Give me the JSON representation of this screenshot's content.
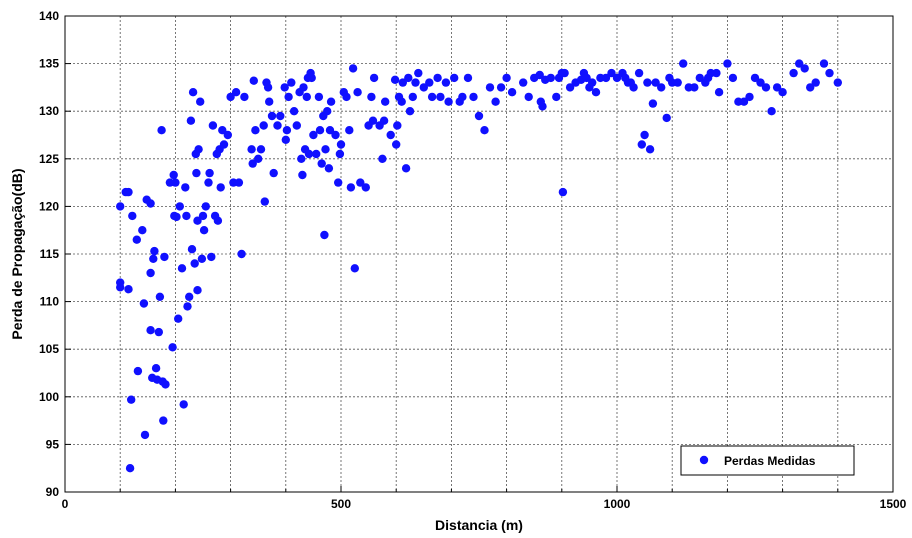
{
  "chart_data": {
    "type": "scatter",
    "title": "",
    "xlabel": "Distancia (m)",
    "ylabel": "Perda de Propagação(dB)",
    "xlim": [
      0,
      1500
    ],
    "ylim": [
      90,
      140
    ],
    "xticks": [
      0,
      500,
      1000,
      1500
    ],
    "yticks": [
      90,
      95,
      100,
      105,
      110,
      115,
      120,
      125,
      130,
      135,
      140
    ],
    "grid": true,
    "legend_position": "bottom-right",
    "marker_color": "#1010ff",
    "series": [
      {
        "name": "Perdas Medidas",
        "points": [
          [
            100,
            112.0
          ],
          [
            100,
            111.5
          ],
          [
            100,
            120.0
          ],
          [
            110,
            121.5
          ],
          [
            115,
            121.5
          ],
          [
            115,
            111.3
          ],
          [
            118,
            92.5
          ],
          [
            120,
            99.7
          ],
          [
            122,
            119.0
          ],
          [
            130,
            116.5
          ],
          [
            132,
            102.7
          ],
          [
            140,
            117.5
          ],
          [
            143,
            109.8
          ],
          [
            145,
            96.0
          ],
          [
            148,
            120.7
          ],
          [
            155,
            120.3
          ],
          [
            155,
            113.0
          ],
          [
            155,
            107.0
          ],
          [
            158,
            102.0
          ],
          [
            160,
            114.5
          ],
          [
            162,
            115.3
          ],
          [
            165,
            103.0
          ],
          [
            167,
            101.8
          ],
          [
            170,
            106.8
          ],
          [
            172,
            110.5
          ],
          [
            175,
            128.0
          ],
          [
            177,
            101.6
          ],
          [
            178,
            97.5
          ],
          [
            180,
            114.7
          ],
          [
            182,
            101.3
          ],
          [
            190,
            122.5
          ],
          [
            195,
            105.2
          ],
          [
            197,
            123.3
          ],
          [
            198,
            119.0
          ],
          [
            200,
            122.5
          ],
          [
            202,
            118.9
          ],
          [
            205,
            108.2
          ],
          [
            208,
            120.0
          ],
          [
            212,
            113.5
          ],
          [
            215,
            99.2
          ],
          [
            218,
            122.0
          ],
          [
            220,
            119.0
          ],
          [
            222,
            109.5
          ],
          [
            225,
            110.5
          ],
          [
            228,
            129.0
          ],
          [
            230,
            115.5
          ],
          [
            232,
            132.0
          ],
          [
            235,
            114.0
          ],
          [
            237,
            125.5
          ],
          [
            238,
            123.5
          ],
          [
            240,
            111.2
          ],
          [
            240,
            118.5
          ],
          [
            242,
            126.0
          ],
          [
            245,
            131.0
          ],
          [
            248,
            114.5
          ],
          [
            250,
            119.0
          ],
          [
            252,
            117.5
          ],
          [
            255,
            120.0
          ],
          [
            260,
            122.5
          ],
          [
            262,
            123.5
          ],
          [
            265,
            114.7
          ],
          [
            268,
            128.5
          ],
          [
            272,
            119.0
          ],
          [
            275,
            125.5
          ],
          [
            277,
            118.5
          ],
          [
            280,
            126.0
          ],
          [
            282,
            122.0
          ],
          [
            285,
            128.0
          ],
          [
            288,
            126.5
          ],
          [
            295,
            127.5
          ],
          [
            300,
            131.5
          ],
          [
            305,
            122.5
          ],
          [
            310,
            132.0
          ],
          [
            315,
            122.5
          ],
          [
            320,
            115.0
          ],
          [
            325,
            131.5
          ],
          [
            338,
            126.0
          ],
          [
            340,
            124.5
          ],
          [
            342,
            133.2
          ],
          [
            345,
            128.0
          ],
          [
            350,
            125.0
          ],
          [
            355,
            126.0
          ],
          [
            360,
            128.5
          ],
          [
            362,
            120.5
          ],
          [
            365,
            133.0
          ],
          [
            368,
            132.5
          ],
          [
            370,
            131.0
          ],
          [
            375,
            129.5
          ],
          [
            378,
            123.5
          ],
          [
            385,
            128.5
          ],
          [
            390,
            129.5
          ],
          [
            398,
            132.5
          ],
          [
            400,
            127.0
          ],
          [
            402,
            128.0
          ],
          [
            405,
            131.5
          ],
          [
            410,
            133.0
          ],
          [
            415,
            130.0
          ],
          [
            420,
            128.5
          ],
          [
            425,
            132.0
          ],
          [
            428,
            125.0
          ],
          [
            430,
            123.3
          ],
          [
            432,
            132.5
          ],
          [
            435,
            126.0
          ],
          [
            438,
            131.5
          ],
          [
            440,
            133.5
          ],
          [
            442,
            125.5
          ],
          [
            445,
            134.0
          ],
          [
            447,
            133.5
          ],
          [
            450,
            127.5
          ],
          [
            455,
            125.5
          ],
          [
            460,
            131.5
          ],
          [
            462,
            128.0
          ],
          [
            465,
            124.5
          ],
          [
            468,
            129.5
          ],
          [
            470,
            117.0
          ],
          [
            472,
            126.0
          ],
          [
            475,
            130.0
          ],
          [
            478,
            124.0
          ],
          [
            480,
            128.0
          ],
          [
            482,
            131.0
          ],
          [
            490,
            127.5
          ],
          [
            495,
            122.5
          ],
          [
            498,
            125.5
          ],
          [
            500,
            126.5
          ],
          [
            505,
            132.0
          ],
          [
            510,
            131.5
          ],
          [
            515,
            128.0
          ],
          [
            518,
            122.0
          ],
          [
            522,
            134.5
          ],
          [
            525,
            113.5
          ],
          [
            530,
            132.0
          ],
          [
            535,
            122.5
          ],
          [
            545,
            122.0
          ],
          [
            550,
            128.5
          ],
          [
            555,
            131.5
          ],
          [
            558,
            129.0
          ],
          [
            560,
            133.5
          ],
          [
            570,
            128.5
          ],
          [
            575,
            125.0
          ],
          [
            578,
            129.0
          ],
          [
            580,
            131.0
          ],
          [
            590,
            127.5
          ],
          [
            598,
            133.3
          ],
          [
            600,
            126.5
          ],
          [
            602,
            128.5
          ],
          [
            605,
            131.5
          ],
          [
            610,
            131.0
          ],
          [
            612,
            133.0
          ],
          [
            618,
            124.0
          ],
          [
            622,
            133.5
          ],
          [
            625,
            130.0
          ],
          [
            630,
            131.5
          ],
          [
            635,
            133.0
          ],
          [
            640,
            134.0
          ],
          [
            650,
            132.5
          ],
          [
            660,
            133.0
          ],
          [
            665,
            131.5
          ],
          [
            675,
            133.5
          ],
          [
            680,
            131.5
          ],
          [
            690,
            133.0
          ],
          [
            695,
            131.0
          ],
          [
            705,
            133.5
          ],
          [
            715,
            131.0
          ],
          [
            720,
            131.5
          ],
          [
            730,
            133.5
          ],
          [
            740,
            131.5
          ],
          [
            750,
            129.5
          ],
          [
            760,
            128.0
          ],
          [
            770,
            132.5
          ],
          [
            780,
            131.0
          ],
          [
            790,
            132.5
          ],
          [
            800,
            133.5
          ],
          [
            810,
            132.0
          ],
          [
            830,
            133.0
          ],
          [
            840,
            131.5
          ],
          [
            850,
            133.5
          ],
          [
            860,
            133.8
          ],
          [
            862,
            131.0
          ],
          [
            865,
            130.5
          ],
          [
            870,
            133.3
          ],
          [
            880,
            133.5
          ],
          [
            890,
            131.5
          ],
          [
            895,
            133.5
          ],
          [
            900,
            134.0
          ],
          [
            902,
            121.5
          ],
          [
            905,
            134.0
          ],
          [
            915,
            132.5
          ],
          [
            925,
            133.0
          ],
          [
            935,
            133.3
          ],
          [
            940,
            134.0
          ],
          [
            945,
            133.5
          ],
          [
            950,
            132.5
          ],
          [
            955,
            133.0
          ],
          [
            962,
            132.0
          ],
          [
            970,
            133.5
          ],
          [
            980,
            133.5
          ],
          [
            990,
            134.0
          ],
          [
            1000,
            133.5
          ],
          [
            1010,
            134.0
          ],
          [
            1015,
            133.5
          ],
          [
            1020,
            133.0
          ],
          [
            1025,
            133.0
          ],
          [
            1030,
            132.5
          ],
          [
            1040,
            134.0
          ],
          [
            1045,
            126.5
          ],
          [
            1050,
            127.5
          ],
          [
            1055,
            133.0
          ],
          [
            1060,
            126.0
          ],
          [
            1065,
            130.8
          ],
          [
            1070,
            133.0
          ],
          [
            1080,
            132.5
          ],
          [
            1090,
            129.3
          ],
          [
            1095,
            133.5
          ],
          [
            1100,
            133.0
          ],
          [
            1110,
            133.0
          ],
          [
            1120,
            135.0
          ],
          [
            1130,
            132.5
          ],
          [
            1140,
            132.5
          ],
          [
            1150,
            133.5
          ],
          [
            1160,
            133.0
          ],
          [
            1165,
            133.5
          ],
          [
            1170,
            134.0
          ],
          [
            1180,
            134.0
          ],
          [
            1185,
            132.0
          ],
          [
            1200,
            135.0
          ],
          [
            1210,
            133.5
          ],
          [
            1220,
            131.0
          ],
          [
            1230,
            131.0
          ],
          [
            1240,
            131.5
          ],
          [
            1250,
            133.5
          ],
          [
            1260,
            133.0
          ],
          [
            1270,
            132.5
          ],
          [
            1280,
            130.0
          ],
          [
            1290,
            132.5
          ],
          [
            1300,
            132.0
          ],
          [
            1320,
            134.0
          ],
          [
            1330,
            135.0
          ],
          [
            1340,
            134.5
          ],
          [
            1350,
            132.5
          ],
          [
            1360,
            133.0
          ],
          [
            1375,
            135.0
          ],
          [
            1385,
            134.0
          ],
          [
            1400,
            133.0
          ]
        ]
      }
    ]
  }
}
